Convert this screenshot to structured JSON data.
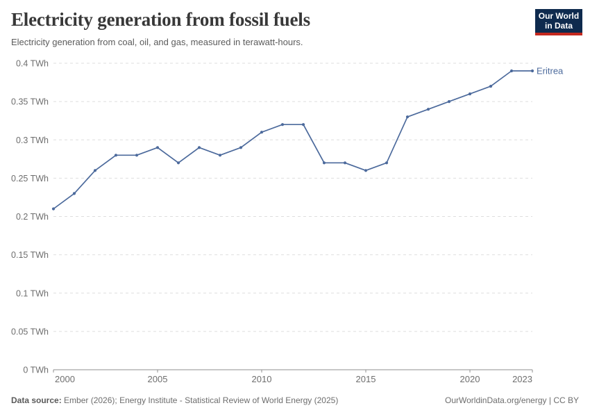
{
  "header": {
    "title": "Electricity generation from fossil fuels",
    "subtitle": "Electricity generation from coal, oil, and gas, measured in terawatt-hours.",
    "logo": {
      "line1": "Our World",
      "line2": "in Data",
      "bg_color": "#0e2a4e",
      "accent_color": "#c3281e"
    }
  },
  "chart_data": {
    "type": "line",
    "title": "Electricity generation from fossil fuels",
    "xlabel": "",
    "ylabel": "TWh",
    "xlim": [
      2000,
      2023
    ],
    "ylim": [
      0,
      0.4
    ],
    "grid": "horizontal-dashed",
    "x": [
      2000,
      2001,
      2002,
      2003,
      2004,
      2005,
      2006,
      2007,
      2008,
      2009,
      2010,
      2011,
      2012,
      2013,
      2014,
      2015,
      2016,
      2017,
      2018,
      2019,
      2020,
      2021,
      2022,
      2023
    ],
    "series": [
      {
        "name": "Eritrea",
        "color": "#4c6a9c",
        "values": [
          0.21,
          0.23,
          0.26,
          0.28,
          0.28,
          0.29,
          0.27,
          0.29,
          0.28,
          0.29,
          0.31,
          0.32,
          0.32,
          0.27,
          0.27,
          0.26,
          0.27,
          0.33,
          0.34,
          0.35,
          0.36,
          0.37,
          0.39,
          0.39
        ]
      }
    ],
    "x_ticks": [
      2000,
      2005,
      2010,
      2015,
      2020,
      2023
    ],
    "y_ticks": [
      {
        "value": 0,
        "label": "0 TWh"
      },
      {
        "value": 0.05,
        "label": "0.05 TWh"
      },
      {
        "value": 0.1,
        "label": "0.1 TWh"
      },
      {
        "value": 0.15,
        "label": "0.15 TWh"
      },
      {
        "value": 0.2,
        "label": "0.2 TWh"
      },
      {
        "value": 0.25,
        "label": "0.25 TWh"
      },
      {
        "value": 0.3,
        "label": "0.3 TWh"
      },
      {
        "value": 0.35,
        "label": "0.35 TWh"
      },
      {
        "value": 0.4,
        "label": "0.4 TWh"
      }
    ],
    "legend_position": "end-of-line-label",
    "colors": {
      "gridline": "#dedede",
      "axis": "#8f8f8f",
      "tick_label": "#6e6e6e"
    }
  },
  "footer": {
    "datasource_label": "Data source:",
    "datasource_text": " Ember (2026); Energy Institute - Statistical Review of World Energy (2025)",
    "link_text": "OurWorldinData.org/energy | CC BY"
  }
}
